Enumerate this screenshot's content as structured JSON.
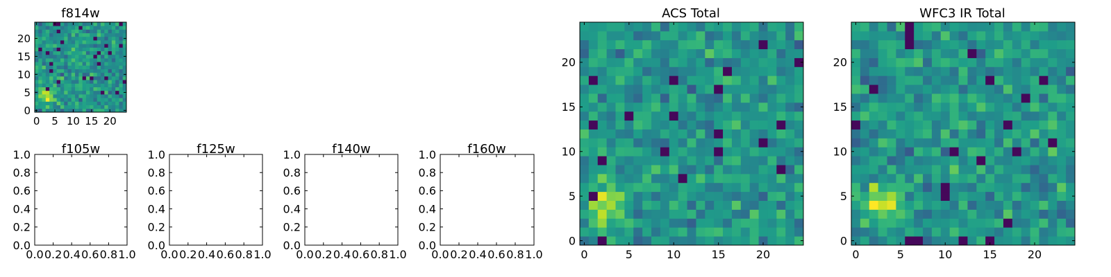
{
  "colors": {
    "background": "#ffffff",
    "axes": "#000000",
    "colormap": "viridis"
  },
  "chart_data": [
    {
      "id": "f814w",
      "type": "heatmap",
      "title": "f814w",
      "xlabel": "",
      "ylabel": "",
      "grid_size": 25,
      "origin": "lower",
      "xlim": [
        -0.5,
        24.5
      ],
      "ylim": [
        -0.5,
        24.5
      ],
      "xticks": [
        0,
        5,
        10,
        15,
        20
      ],
      "yticks": [
        0,
        5,
        10,
        15,
        20
      ],
      "xtick_labels": [
        "0",
        "5",
        "10",
        "15",
        "20"
      ],
      "ytick_labels": [
        "0",
        "5",
        "10",
        "15",
        "20"
      ],
      "seed": 13
    },
    {
      "id": "f105w",
      "type": "heatmap",
      "title": "f105w",
      "xlabel": "",
      "ylabel": "",
      "empty": true,
      "xlim": [
        0,
        1
      ],
      "ylim": [
        0,
        1
      ],
      "xticks": [
        0,
        0.2,
        0.4,
        0.6,
        0.8,
        1
      ],
      "yticks": [
        0,
        0.2,
        0.4,
        0.6,
        0.8,
        1
      ],
      "xtick_labels": [
        "0.0",
        "0.2",
        "0.4",
        "0.6",
        "0.8",
        "1.0"
      ],
      "ytick_labels": [
        "0.0",
        "0.2",
        "0.4",
        "0.6",
        "0.8",
        "1.0"
      ]
    },
    {
      "id": "f125w",
      "type": "heatmap",
      "title": "f125w",
      "xlabel": "",
      "ylabel": "",
      "empty": true,
      "xlim": [
        0,
        1
      ],
      "ylim": [
        0,
        1
      ],
      "xticks": [
        0,
        0.2,
        0.4,
        0.6,
        0.8,
        1
      ],
      "yticks": [
        0,
        0.2,
        0.4,
        0.6,
        0.8,
        1
      ],
      "xtick_labels": [
        "0.0",
        "0.2",
        "0.4",
        "0.6",
        "0.8",
        "1.0"
      ],
      "ytick_labels": [
        "0.0",
        "0.2",
        "0.4",
        "0.6",
        "0.8",
        "1.0"
      ]
    },
    {
      "id": "f140w",
      "type": "heatmap",
      "title": "f140w",
      "xlabel": "",
      "ylabel": "",
      "empty": true,
      "xlim": [
        0,
        1
      ],
      "ylim": [
        0,
        1
      ],
      "xticks": [
        0,
        0.2,
        0.4,
        0.6,
        0.8,
        1
      ],
      "yticks": [
        0,
        0.2,
        0.4,
        0.6,
        0.8,
        1
      ],
      "xtick_labels": [
        "0.0",
        "0.2",
        "0.4",
        "0.6",
        "0.8",
        "1.0"
      ],
      "ytick_labels": [
        "0.0",
        "0.2",
        "0.4",
        "0.6",
        "0.8",
        "1.0"
      ]
    },
    {
      "id": "f160w",
      "type": "heatmap",
      "title": "f160w",
      "xlabel": "",
      "ylabel": "",
      "empty": true,
      "xlim": [
        0,
        1
      ],
      "ylim": [
        0,
        1
      ],
      "xticks": [
        0,
        0.2,
        0.4,
        0.6,
        0.8,
        1
      ],
      "yticks": [
        0,
        0.2,
        0.4,
        0.6,
        0.8,
        1
      ],
      "xtick_labels": [
        "0.0",
        "0.2",
        "0.4",
        "0.6",
        "0.8",
        "1.0"
      ],
      "ytick_labels": [
        "0.0",
        "0.2",
        "0.4",
        "0.6",
        "0.8",
        "1.0"
      ]
    },
    {
      "id": "acs-total",
      "type": "heatmap",
      "title": "ACS Total",
      "xlabel": "",
      "ylabel": "",
      "grid_size": 25,
      "origin": "lower",
      "xlim": [
        -0.5,
        24.5
      ],
      "ylim": [
        -0.5,
        24.5
      ],
      "xticks": [
        0,
        5,
        10,
        15,
        20
      ],
      "yticks": [
        0,
        5,
        10,
        15,
        20
      ],
      "xtick_labels": [
        "0",
        "5",
        "10",
        "15",
        "20"
      ],
      "ytick_labels": [
        "0",
        "5",
        "10",
        "15",
        "20"
      ],
      "seed": 29
    },
    {
      "id": "wfc3-ir-total",
      "type": "heatmap",
      "title": "WFC3 IR Total",
      "xlabel": "",
      "ylabel": "",
      "grid_size": 25,
      "origin": "lower",
      "xlim": [
        -0.5,
        24.5
      ],
      "ylim": [
        -0.5,
        24.5
      ],
      "xticks": [
        0,
        5,
        10,
        15,
        20
      ],
      "yticks": [
        0,
        5,
        10,
        15,
        20
      ],
      "xtick_labels": [
        "0",
        "5",
        "10",
        "15",
        "20"
      ],
      "ytick_labels": [
        "0",
        "5",
        "10",
        "15",
        "20"
      ],
      "seed": 47
    }
  ]
}
